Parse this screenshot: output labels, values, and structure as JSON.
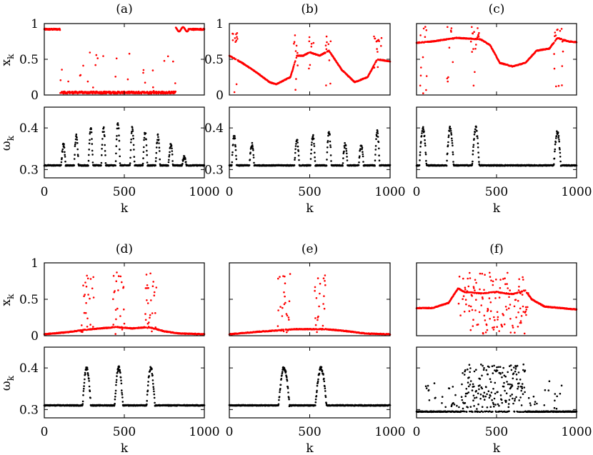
{
  "figure": {
    "xlabel": "k",
    "ylabel_top": "x",
    "ylabel_top_sub": "k",
    "ylabel_bottom": "ω",
    "ylabel_bottom_sub": "k",
    "colors": {
      "top_series": "#ff0000",
      "bottom_series": "#000000",
      "axis": "#000000"
    }
  },
  "chart_data": [
    {
      "panel": "(a)",
      "type": "scatter",
      "title": "(a)",
      "xlim": [
        0,
        1000
      ],
      "top": {
        "ylim": [
          0,
          1
        ],
        "yticks": [
          "0",
          "0.5",
          "1"
        ],
        "mode": "ab",
        "baseline": 0.92,
        "regions": [
          [
            100,
            820
          ]
        ],
        "bumps": []
      },
      "bottom": {
        "ylim": [
          0.28,
          0.45
        ],
        "yticks": [
          "0.3",
          "0.4"
        ],
        "base": 0.31,
        "peaks": [
          [
            120,
            0.36
          ],
          [
            200,
            0.38
          ],
          [
            290,
            0.4
          ],
          [
            370,
            0.4
          ],
          [
            460,
            0.41
          ],
          [
            550,
            0.4
          ],
          [
            630,
            0.39
          ],
          [
            710,
            0.38
          ],
          [
            790,
            0.36
          ],
          [
            875,
            0.33
          ]
        ],
        "pw": 14
      }
    },
    {
      "panel": "(b)",
      "type": "scatter",
      "title": "(b)",
      "xlim": [
        0,
        1000
      ],
      "top": {
        "ylim": [
          0,
          1
        ],
        "yticks": [
          "0",
          "0.5",
          "1"
        ],
        "mode": "curve",
        "curve": [
          [
            0,
            0.55
          ],
          [
            80,
            0.45
          ],
          [
            180,
            0.3
          ],
          [
            250,
            0.18
          ],
          [
            290,
            0.15
          ],
          [
            380,
            0.25
          ],
          [
            420,
            0.55
          ],
          [
            460,
            0.55
          ],
          [
            500,
            0.6
          ],
          [
            560,
            0.55
          ],
          [
            620,
            0.62
          ],
          [
            700,
            0.35
          ],
          [
            780,
            0.18
          ],
          [
            860,
            0.25
          ],
          [
            920,
            0.5
          ],
          [
            1000,
            0.47
          ]
        ],
        "bumps": [
          [
            30,
            0.8
          ],
          [
            130,
            0.75
          ],
          [
            410,
            0.75
          ],
          [
            510,
            0.75
          ],
          [
            610,
            0.75
          ],
          [
            920,
            0.75
          ]
        ],
        "regions": [
          [
            10,
            50
          ],
          [
            400,
            430
          ],
          [
            490,
            525
          ],
          [
            600,
            630
          ],
          [
            900,
            950
          ]
        ]
      },
      "bottom": {
        "ylim": [
          0.28,
          0.45
        ],
        "yticks": [
          "0.3",
          "0.4"
        ],
        "base": 0.31,
        "peaks": [
          [
            30,
            0.38
          ],
          [
            140,
            0.36
          ],
          [
            420,
            0.37
          ],
          [
            520,
            0.38
          ],
          [
            620,
            0.39
          ],
          [
            720,
            0.36
          ],
          [
            820,
            0.36
          ],
          [
            920,
            0.39
          ]
        ],
        "pw": 15
      }
    },
    {
      "panel": "(c)",
      "type": "scatter",
      "title": "(c)",
      "xlim": [
        0,
        1000
      ],
      "top": {
        "ylim": [
          0,
          1
        ],
        "yticks": [],
        "mode": "curve",
        "curve": [
          [
            0,
            0.73
          ],
          [
            100,
            0.75
          ],
          [
            250,
            0.8
          ],
          [
            400,
            0.78
          ],
          [
            460,
            0.7
          ],
          [
            520,
            0.45
          ],
          [
            600,
            0.4
          ],
          [
            680,
            0.45
          ],
          [
            750,
            0.62
          ],
          [
            830,
            0.65
          ],
          [
            880,
            0.8
          ],
          [
            950,
            0.75
          ],
          [
            1000,
            0.74
          ]
        ],
        "bumps": [
          [
            40,
            0.88
          ],
          [
            210,
            0.88
          ],
          [
            370,
            0.88
          ],
          [
            880,
            0.88
          ]
        ],
        "regions": [
          [
            20,
            70
          ],
          [
            190,
            230
          ],
          [
            340,
            390
          ],
          [
            860,
            920
          ]
        ]
      },
      "bottom": {
        "ylim": [
          0.28,
          0.45
        ],
        "yticks": [],
        "base": 0.31,
        "peaks": [
          [
            40,
            0.4
          ],
          [
            210,
            0.4
          ],
          [
            370,
            0.4
          ],
          [
            880,
            0.39
          ]
        ],
        "pw": 22
      }
    },
    {
      "panel": "(d)",
      "type": "scatter",
      "title": "(d)",
      "xlim": [
        0,
        1000
      ],
      "top": {
        "ylim": [
          0,
          1
        ],
        "yticks": [
          "0",
          "0.5",
          "1"
        ],
        "mode": "curve",
        "curve": [
          [
            0,
            0.02
          ],
          [
            150,
            0.05
          ],
          [
            250,
            0.08
          ],
          [
            350,
            0.1
          ],
          [
            450,
            0.12
          ],
          [
            550,
            0.1
          ],
          [
            650,
            0.12
          ],
          [
            750,
            0.06
          ],
          [
            850,
            0.03
          ],
          [
            1000,
            0.02
          ]
        ],
        "bumps": [],
        "regions": [
          [
            230,
            310
          ],
          [
            430,
            500
          ],
          [
            630,
            700
          ]
        ]
      },
      "bottom": {
        "ylim": [
          0.28,
          0.45
        ],
        "yticks": [
          "0.3",
          "0.4"
        ],
        "base": 0.31,
        "peaks": [
          [
            265,
            0.4
          ],
          [
            465,
            0.4
          ],
          [
            665,
            0.4
          ]
        ],
        "pw": 26
      }
    },
    {
      "panel": "(e)",
      "type": "scatter",
      "title": "(e)",
      "xlim": [
        0,
        1000
      ],
      "top": {
        "ylim": [
          0,
          1
        ],
        "yticks": [],
        "mode": "curve",
        "curve": [
          [
            0,
            0.02
          ],
          [
            150,
            0.05
          ],
          [
            280,
            0.07
          ],
          [
            400,
            0.09
          ],
          [
            500,
            0.09
          ],
          [
            600,
            0.09
          ],
          [
            700,
            0.07
          ],
          [
            850,
            0.03
          ],
          [
            1000,
            0.02
          ]
        ],
        "bumps": [],
        "regions": [
          [
            300,
            380
          ],
          [
            530,
            600
          ]
        ]
      },
      "bottom": {
        "ylim": [
          0.28,
          0.45
        ],
        "yticks": [],
        "base": 0.31,
        "peaks": [
          [
            340,
            0.4
          ],
          [
            570,
            0.4
          ]
        ],
        "pw": 34
      }
    },
    {
      "panel": "(f)",
      "type": "scatter",
      "title": "(f)",
      "xlim": [
        0,
        1000
      ],
      "top": {
        "ylim": [
          0,
          1
        ],
        "yticks": [],
        "mode": "curve",
        "curve": [
          [
            0,
            0.38
          ],
          [
            100,
            0.38
          ],
          [
            200,
            0.45
          ],
          [
            260,
            0.65
          ],
          [
            300,
            0.6
          ],
          [
            400,
            0.58
          ],
          [
            500,
            0.6
          ],
          [
            600,
            0.57
          ],
          [
            680,
            0.62
          ],
          [
            720,
            0.5
          ],
          [
            800,
            0.4
          ],
          [
            900,
            0.38
          ],
          [
            1000,
            0.36
          ]
        ],
        "bumps": [],
        "regions": [
          [
            260,
            700
          ]
        ]
      },
      "bottom": {
        "ylim": [
          0.28,
          0.45
        ],
        "yticks": [],
        "base": 0.295,
        "peaks": [],
        "pw": 0,
        "cloud": [
          [
            50,
            950
          ],
          [
            280,
            680
          ]
        ]
      }
    }
  ],
  "grid": {
    "xtick_values": [
      0,
      500,
      1000
    ],
    "xtick_labels": [
      "0",
      "500",
      "1000"
    ]
  }
}
